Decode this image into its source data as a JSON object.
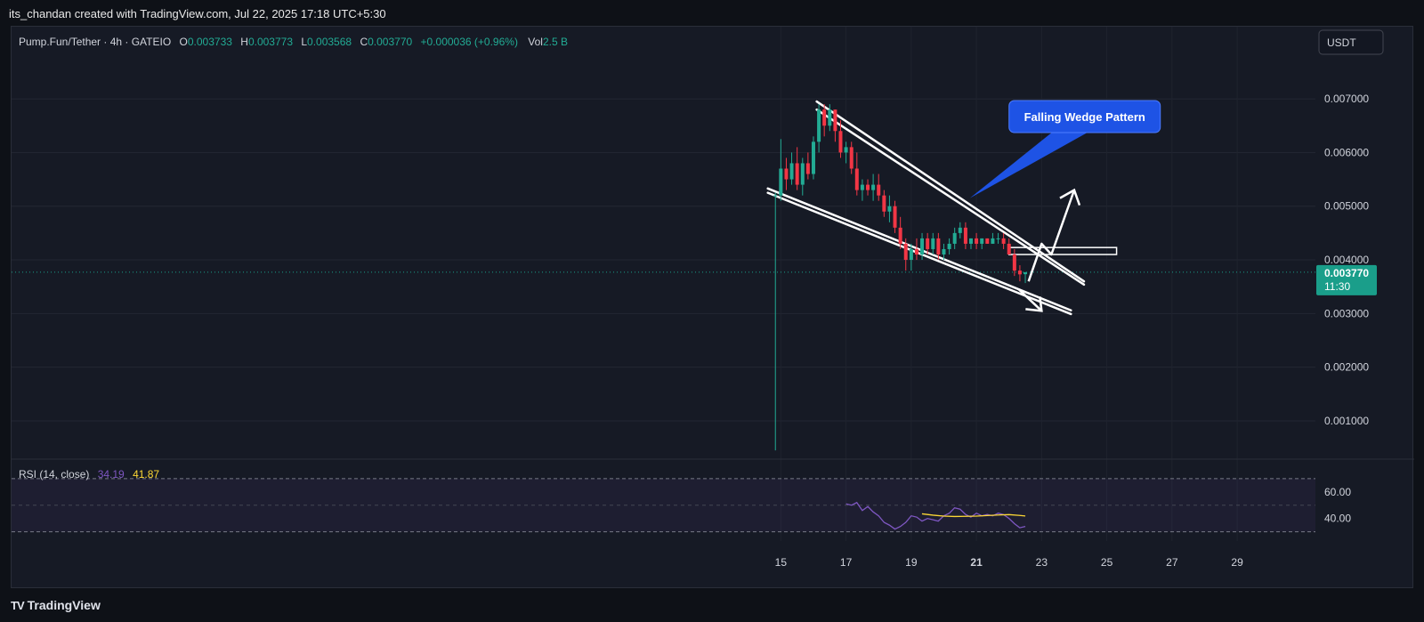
{
  "header": {
    "attribution": "its_chandan created with TradingView.com, Jul 22, 2025 17:18 UTC+5:30"
  },
  "legend": {
    "symbol": "Pump.Fun/Tether · 4h · GATEIO",
    "o_label": "O",
    "o_value": "0.003733",
    "h_label": "H",
    "h_value": "0.003773",
    "l_label": "L",
    "l_value": "0.003568",
    "c_label": "C",
    "c_value": "0.003770",
    "change": "+0.000036 (+0.96%)",
    "vol_label": "Vol",
    "vol_value": "2.5 B"
  },
  "currency_button": "USDT",
  "last_price": {
    "price": "0.003770",
    "countdown": "11:30"
  },
  "annotation": {
    "text": "Falling Wedge Pattern"
  },
  "rsi": {
    "label": "RSI (14, close)",
    "value": "34.19",
    "ma_value": "41.87",
    "tick_labels": [
      "60.00",
      "40.00"
    ]
  },
  "footer": {
    "brand": "TradingView",
    "logo_text": "TV"
  },
  "colors": {
    "up": "#22ab94",
    "down": "#f23645",
    "rsi": "#7e57c2",
    "rsi_ma": "#fdd835",
    "annotation_bg": "#1e53e5",
    "last_price_bg": "#1a9e8a"
  },
  "chart_data": {
    "type": "candlestick",
    "y_axis_labels": [
      "0.007000",
      "0.006000",
      "0.005000",
      "0.004000",
      "0.003000",
      "0.002000",
      "0.001000"
    ],
    "x_axis_labels": [
      "15",
      "17",
      "19",
      "21",
      "23",
      "25",
      "27",
      "29"
    ],
    "x_axis_label_values": [
      15,
      17,
      19,
      21,
      23,
      25,
      27,
      29
    ],
    "x_axis_range": [
      -8.6,
      31.4
    ],
    "y_range": [
      0.00032,
      0.00788
    ],
    "candles": [
      {
        "day": 14.833,
        "o": 0.0052,
        "h": 0.00525,
        "l": 0.00045,
        "c": 0.0052
      },
      {
        "day": 15.0,
        "o": 0.0052,
        "h": 0.00625,
        "l": 0.0051,
        "c": 0.0057
      },
      {
        "day": 15.167,
        "o": 0.0057,
        "h": 0.0059,
        "l": 0.0053,
        "c": 0.0055
      },
      {
        "day": 15.333,
        "o": 0.0055,
        "h": 0.006,
        "l": 0.0054,
        "c": 0.0058
      },
      {
        "day": 15.5,
        "o": 0.0058,
        "h": 0.0061,
        "l": 0.0053,
        "c": 0.0054
      },
      {
        "day": 15.667,
        "o": 0.0054,
        "h": 0.0059,
        "l": 0.0052,
        "c": 0.0058
      },
      {
        "day": 15.833,
        "o": 0.0058,
        "h": 0.006,
        "l": 0.0055,
        "c": 0.0056
      },
      {
        "day": 16.0,
        "o": 0.0056,
        "h": 0.0063,
        "l": 0.0055,
        "c": 0.0062
      },
      {
        "day": 16.167,
        "o": 0.0062,
        "h": 0.0069,
        "l": 0.006,
        "c": 0.0068
      },
      {
        "day": 16.333,
        "o": 0.0068,
        "h": 0.0069,
        "l": 0.0063,
        "c": 0.0065
      },
      {
        "day": 16.5,
        "o": 0.0065,
        "h": 0.0069,
        "l": 0.0064,
        "c": 0.0068
      },
      {
        "day": 16.667,
        "o": 0.0068,
        "h": 0.0068,
        "l": 0.0062,
        "c": 0.0064
      },
      {
        "day": 16.833,
        "o": 0.0064,
        "h": 0.0066,
        "l": 0.0059,
        "c": 0.006
      },
      {
        "day": 17.0,
        "o": 0.006,
        "h": 0.0062,
        "l": 0.0058,
        "c": 0.0061
      },
      {
        "day": 17.167,
        "o": 0.0061,
        "h": 0.0062,
        "l": 0.0056,
        "c": 0.0057
      },
      {
        "day": 17.333,
        "o": 0.0057,
        "h": 0.006,
        "l": 0.0052,
        "c": 0.0053
      },
      {
        "day": 17.5,
        "o": 0.0053,
        "h": 0.0055,
        "l": 0.0051,
        "c": 0.0054
      },
      {
        "day": 17.667,
        "o": 0.0054,
        "h": 0.0055,
        "l": 0.0052,
        "c": 0.0053
      },
      {
        "day": 17.833,
        "o": 0.0053,
        "h": 0.0056,
        "l": 0.0051,
        "c": 0.0054
      },
      {
        "day": 18.0,
        "o": 0.0054,
        "h": 0.0056,
        "l": 0.0051,
        "c": 0.0052
      },
      {
        "day": 18.167,
        "o": 0.0052,
        "h": 0.0053,
        "l": 0.0048,
        "c": 0.0049
      },
      {
        "day": 18.333,
        "o": 0.0049,
        "h": 0.0052,
        "l": 0.0047,
        "c": 0.005
      },
      {
        "day": 18.5,
        "o": 0.005,
        "h": 0.0051,
        "l": 0.0045,
        "c": 0.0046
      },
      {
        "day": 18.667,
        "o": 0.0046,
        "h": 0.0048,
        "l": 0.0042,
        "c": 0.0043
      },
      {
        "day": 18.833,
        "o": 0.0043,
        "h": 0.0044,
        "l": 0.0038,
        "c": 0.004
      },
      {
        "day": 19.0,
        "o": 0.004,
        "h": 0.0043,
        "l": 0.0038,
        "c": 0.0042
      },
      {
        "day": 19.167,
        "o": 0.0042,
        "h": 0.0044,
        "l": 0.004,
        "c": 0.0041
      },
      {
        "day": 19.333,
        "o": 0.0041,
        "h": 0.0045,
        "l": 0.004,
        "c": 0.0044
      },
      {
        "day": 19.5,
        "o": 0.0044,
        "h": 0.0045,
        "l": 0.0041,
        "c": 0.0042
      },
      {
        "day": 19.667,
        "o": 0.0042,
        "h": 0.0045,
        "l": 0.0041,
        "c": 0.0044
      },
      {
        "day": 19.833,
        "o": 0.0044,
        "h": 0.0045,
        "l": 0.004,
        "c": 0.0041
      },
      {
        "day": 20.0,
        "o": 0.0041,
        "h": 0.0043,
        "l": 0.004,
        "c": 0.0042
      },
      {
        "day": 20.167,
        "o": 0.0042,
        "h": 0.0044,
        "l": 0.0041,
        "c": 0.0043
      },
      {
        "day": 20.333,
        "o": 0.0043,
        "h": 0.0046,
        "l": 0.0042,
        "c": 0.0045
      },
      {
        "day": 20.5,
        "o": 0.0045,
        "h": 0.0047,
        "l": 0.0044,
        "c": 0.0046
      },
      {
        "day": 20.667,
        "o": 0.0046,
        "h": 0.0047,
        "l": 0.0042,
        "c": 0.0043
      },
      {
        "day": 20.833,
        "o": 0.0043,
        "h": 0.0044,
        "l": 0.0042,
        "c": 0.0044
      },
      {
        "day": 21.0,
        "o": 0.0044,
        "h": 0.0045,
        "l": 0.0042,
        "c": 0.0043
      },
      {
        "day": 21.167,
        "o": 0.0043,
        "h": 0.0044,
        "l": 0.0042,
        "c": 0.0044
      },
      {
        "day": 21.333,
        "o": 0.0044,
        "h": 0.0044,
        "l": 0.0043,
        "c": 0.0043
      },
      {
        "day": 21.5,
        "o": 0.0043,
        "h": 0.0045,
        "l": 0.0043,
        "c": 0.0044
      },
      {
        "day": 21.667,
        "o": 0.0044,
        "h": 0.0045,
        "l": 0.0043,
        "c": 0.0044
      },
      {
        "day": 21.833,
        "o": 0.0044,
        "h": 0.0045,
        "l": 0.0042,
        "c": 0.0043
      },
      {
        "day": 22.0,
        "o": 0.0043,
        "h": 0.0044,
        "l": 0.0041,
        "c": 0.0041
      },
      {
        "day": 22.167,
        "o": 0.0041,
        "h": 0.0042,
        "l": 0.0037,
        "c": 0.0038
      },
      {
        "day": 22.333,
        "o": 0.0038,
        "h": 0.0039,
        "l": 0.0036,
        "c": 0.00373
      },
      {
        "day": 22.5,
        "o": 0.003733,
        "h": 0.003773,
        "l": 0.003568,
        "c": 0.00377
      }
    ],
    "rsi_series": {
      "days": [
        17.0,
        17.17,
        17.33,
        17.5,
        17.67,
        17.83,
        18.0,
        18.17,
        18.33,
        18.5,
        18.67,
        18.83,
        19.0,
        19.17,
        19.33,
        19.5,
        19.67,
        19.83,
        20.0,
        20.17,
        20.33,
        20.5,
        20.67,
        20.83,
        21.0,
        21.17,
        21.33,
        21.5,
        21.67,
        21.83,
        22.0,
        22.17,
        22.33,
        22.5
      ],
      "values": [
        51,
        50,
        52,
        46,
        49,
        45,
        42,
        37,
        35,
        32,
        34,
        37,
        42,
        41,
        38,
        40,
        39,
        38,
        42,
        44,
        48,
        47,
        43,
        41,
        44,
        42,
        43,
        42,
        44,
        43,
        40,
        36,
        33,
        34
      ],
      "ma_days": [
        19.33,
        19.67,
        20.0,
        20.33,
        20.67,
        21.0,
        21.33,
        21.67,
        22.0,
        22.33,
        22.5
      ],
      "ma_values": [
        43.5,
        42.5,
        41.8,
        41.5,
        41.6,
        41.8,
        42.2,
        42.6,
        42.9,
        42.3,
        41.87
      ],
      "range": [
        23,
        78
      ],
      "band": [
        70,
        30
      ]
    },
    "trendlines": [
      {
        "from": [
          16.1,
          0.00695
        ],
        "to": [
          24.3,
          0.0036
        ]
      },
      {
        "from": [
          16.1,
          0.0068
        ],
        "to": [
          24.3,
          0.00354
        ]
      },
      {
        "from": [
          14.6,
          0.00533
        ],
        "to": [
          23.9,
          0.00306
        ]
      },
      {
        "from": [
          14.6,
          0.00525
        ],
        "to": [
          23.9,
          0.00299
        ]
      }
    ],
    "resistance_box": {
      "from": [
        22.0,
        0.00423
      ],
      "to": [
        25.3,
        0.0041
      ]
    },
    "current_price": 0.00377
  }
}
